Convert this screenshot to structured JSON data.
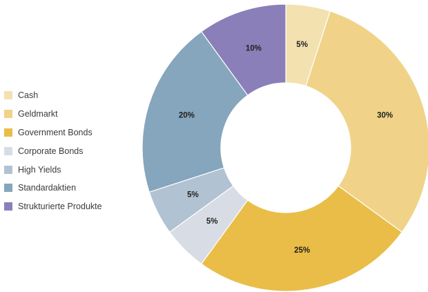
{
  "chart_data": {
    "type": "pie",
    "title": "",
    "donut": true,
    "legend_position": "left",
    "slices": [
      {
        "name": "Cash",
        "value": 5,
        "label": "5%",
        "color": "#f4e1b0"
      },
      {
        "name": "Geldmarkt",
        "value": 30,
        "label": "30%",
        "color": "#f0d389"
      },
      {
        "name": "Government Bonds",
        "value": 25,
        "label": "25%",
        "color": "#e9bd47"
      },
      {
        "name": "Corporate Bonds",
        "value": 5,
        "label": "5%",
        "color": "#d8dde5"
      },
      {
        "name": "High Yields",
        "value": 5,
        "label": "5%",
        "color": "#b1c2d2"
      },
      {
        "name": "Standardaktien",
        "value": 20,
        "label": "20%",
        "color": "#85a6bc"
      },
      {
        "name": "Strukturierte Produkte",
        "value": 10,
        "label": "10%",
        "color": "#8b7fb9"
      }
    ]
  }
}
